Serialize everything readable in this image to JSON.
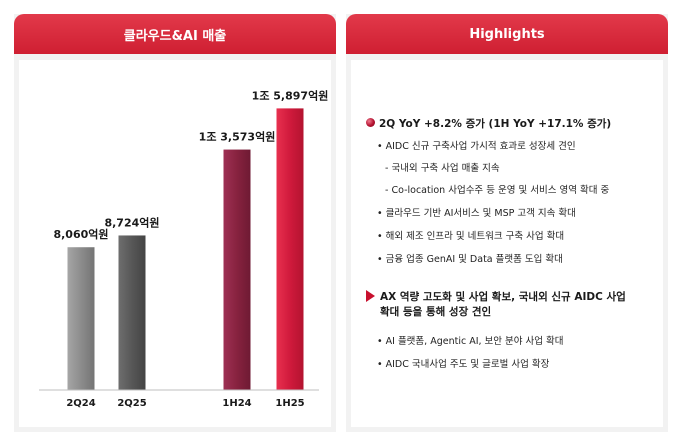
{
  "left_panel": {
    "title": "클라우드&AI 매출"
  },
  "right_panel": {
    "title": "Highlights"
  },
  "chart_data": {
    "type": "bar",
    "title": "클라우드&AI 매출",
    "categories": [
      "2Q24",
      "2Q25",
      "1H24",
      "1H25"
    ],
    "values": [
      8060,
      8724,
      13573,
      15897
    ],
    "value_labels": [
      "8,060억원",
      "8,724억원",
      "1조 3,573억원",
      "1조 5,897억원"
    ],
    "unit": "억원",
    "ylim": [
      0,
      17500
    ],
    "grid": false,
    "legend": "none",
    "bar_colors": [
      "#8c8c8c",
      "#5a5a5a",
      "#8b2446",
      "#d01a3c"
    ]
  },
  "highlights": {
    "section1": {
      "heading": "2Q YoY +8.2% 증가 (1H YoY +17.1% 증가)",
      "icon": "ball-icon",
      "items": [
        {
          "kind": "bullet",
          "text": "• AIDC 신규 구축사업 가시적 효과로 성장세 견인"
        },
        {
          "kind": "dash",
          "text": "- 국내외 구축 사업 매출 지속"
        },
        {
          "kind": "dash",
          "text": "- Co-location 사업수주 등 운영 및 서비스 영역 확대 중"
        },
        {
          "kind": "bullet",
          "text": "• 클라우드 기반 AI서비스 및 MSP 고객 지속 확대"
        },
        {
          "kind": "bullet",
          "text": "• 해외 제조 인프라 및 네트워크 구축 사업 확대"
        },
        {
          "kind": "bullet",
          "text": "• 금융 업종 GenAI 및 Data 플랫폼 도입 확대"
        }
      ]
    },
    "section2": {
      "heading_line1": "AX 역량 고도화 및 사업 확보, 국내외 신규 AIDC 사업",
      "heading_line2": "확대 등을 통해 성장 견인",
      "icon": "arrow-icon",
      "items": [
        {
          "kind": "bullet",
          "text": "• AI 플랫폼, Agentic AI, 보안 분야 사업 확대"
        },
        {
          "kind": "bullet",
          "text": "• AIDC 국내사업 주도 및 글로벌 사업 확장"
        }
      ]
    }
  }
}
